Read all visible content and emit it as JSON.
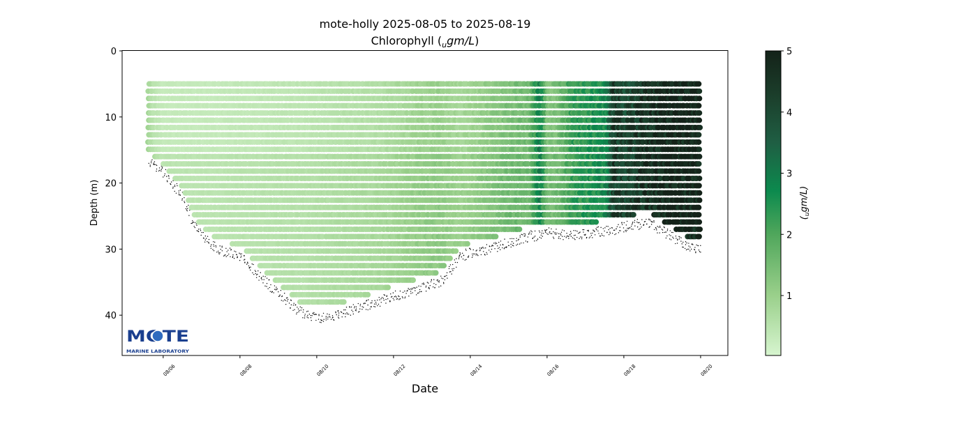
{
  "chart_data": {
    "type": "scatter",
    "title_line1": "mote-holly 2025-08-05 to 2025-08-19",
    "title_line2_prefix": "Chlorophyll (",
    "title_line2_sub": "u",
    "title_line2_unit": "gm/L",
    "title_line2_suffix": ")",
    "xlabel": "Date",
    "ylabel": "Depth (m)",
    "colorbar_label_sub": "u",
    "colorbar_label_unit": "gm/L",
    "xlim_day_of_august": [
      4.93,
      20.71
    ],
    "ylim": [
      46.1,
      0
    ],
    "y_inverted": true,
    "xticks": [
      {
        "day": 6,
        "label": "08/06"
      },
      {
        "day": 8,
        "label": "08/08"
      },
      {
        "day": 10,
        "label": "08/10"
      },
      {
        "day": 12,
        "label": "08/12"
      },
      {
        "day": 14,
        "label": "08/14"
      },
      {
        "day": 16,
        "label": "08/16"
      },
      {
        "day": 18,
        "label": "08/18"
      },
      {
        "day": 20,
        "label": "08/20"
      }
    ],
    "yticks": [
      {
        "v": 0,
        "label": "0"
      },
      {
        "v": 10,
        "label": "10"
      },
      {
        "v": 20,
        "label": "20"
      },
      {
        "v": 30,
        "label": "30"
      },
      {
        "v": 40,
        "label": "40"
      }
    ],
    "colorbar": {
      "range": [
        0.02,
        5
      ],
      "ticks": [
        {
          "v": 1,
          "label": "1"
        },
        {
          "v": 2,
          "label": "2"
        },
        {
          "v": 3,
          "label": "3"
        },
        {
          "v": 4,
          "label": "4"
        },
        {
          "v": 5,
          "label": "5"
        }
      ],
      "colormap": [
        [
          0,
          "#d7f5cf"
        ],
        [
          1,
          "#99cf8a"
        ],
        [
          2,
          "#4fa65b"
        ],
        [
          2.7,
          "#0c8a4e"
        ],
        [
          3.5,
          "#1f5e43"
        ],
        [
          4.3,
          "#1b3d2a"
        ],
        [
          5,
          "#142219"
        ]
      ]
    },
    "profile_top_depth": 5,
    "profiles": [
      {
        "day": 5.62,
        "bottom": 17,
        "chl": 0.8
      },
      {
        "day": 5.75,
        "bottom": 17.5,
        "chl": 0.5
      },
      {
        "day": 6.0,
        "bottom": 18.5,
        "chl": 0.3
      },
      {
        "day": 6.47,
        "bottom": 22,
        "chl": 0.3
      },
      {
        "day": 6.84,
        "bottom": 27,
        "chl": 0.3
      },
      {
        "day": 7.38,
        "bottom": 30,
        "chl": 0.3
      },
      {
        "day": 8.0,
        "bottom": 31,
        "chl": 0.35
      },
      {
        "day": 8.47,
        "bottom": 34,
        "chl": 0.35
      },
      {
        "day": 9.02,
        "bottom": 37,
        "chl": 0.4
      },
      {
        "day": 9.56,
        "bottom": 39.5,
        "chl": 0.4
      },
      {
        "day": 10.0,
        "bottom": 40.5,
        "chl": 0.45
      },
      {
        "day": 10.47,
        "bottom": 40,
        "chl": 0.5
      },
      {
        "day": 11.02,
        "bottom": 39,
        "chl": 0.55
      },
      {
        "day": 11.56,
        "bottom": 38,
        "chl": 0.6
      },
      {
        "day": 12.04,
        "bottom": 37,
        "chl": 0.7
      },
      {
        "day": 12.65,
        "bottom": 36,
        "chl": 0.9
      },
      {
        "day": 13.2,
        "bottom": 35,
        "chl": 1.0
      },
      {
        "day": 13.75,
        "bottom": 31,
        "chl": 0.8
      },
      {
        "day": 14.04,
        "bottom": 30.5,
        "chl": 0.9
      },
      {
        "day": 14.47,
        "bottom": 30,
        "chl": 1.1
      },
      {
        "day": 15.02,
        "bottom": 29,
        "chl": 1.4
      },
      {
        "day": 15.56,
        "bottom": 28,
        "chl": 1.5
      },
      {
        "day": 15.84,
        "bottom": 28,
        "chl": 2.9
      },
      {
        "day": 16.04,
        "bottom": 27.5,
        "chl": 1.3
      },
      {
        "day": 16.29,
        "bottom": 27.7,
        "chl": 1.4
      },
      {
        "day": 16.65,
        "bottom": 28,
        "chl": 2.2
      },
      {
        "day": 17.2,
        "bottom": 27.5,
        "chl": 2.5
      },
      {
        "day": 17.56,
        "bottom": 27.2,
        "chl": 2.7
      },
      {
        "day": 17.75,
        "bottom": 27,
        "chl": 4.3
      },
      {
        "day": 18.1,
        "bottom": 26.5,
        "chl": 4.0
      },
      {
        "day": 18.65,
        "bottom": 26,
        "chl": 4.7
      },
      {
        "day": 19.2,
        "bottom": 28,
        "chl": 5
      },
      {
        "day": 19.75,
        "bottom": 30,
        "chl": 5
      },
      {
        "day": 20.0,
        "bottom": 30,
        "chl": 5
      }
    ]
  },
  "logo": {
    "main": "MOTE",
    "sub": "MARINE LABORATORY",
    "color": "#1a3f8f"
  }
}
